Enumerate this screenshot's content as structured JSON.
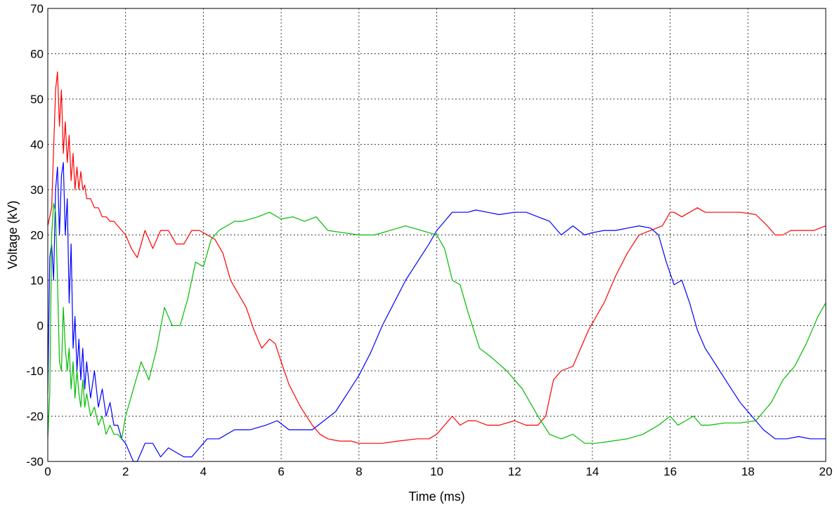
{
  "chart_data": {
    "type": "line",
    "title": "",
    "xlabel": "Time (ms)",
    "ylabel": "Voltage (kV)",
    "xlim": [
      0,
      20
    ],
    "ylim": [
      -30,
      70
    ],
    "xticks": [
      0,
      2,
      4,
      6,
      8,
      10,
      12,
      14,
      16,
      18,
      20
    ],
    "yticks": [
      -30,
      -20,
      -10,
      0,
      10,
      20,
      30,
      40,
      50,
      60,
      70
    ],
    "grid": true,
    "legend": "none",
    "series": [
      {
        "color": "#ff0000",
        "x": [
          0,
          0.1,
          0.2,
          0.25,
          0.3,
          0.35,
          0.4,
          0.45,
          0.5,
          0.55,
          0.6,
          0.65,
          0.7,
          0.75,
          0.8,
          0.85,
          0.9,
          0.95,
          1.0,
          1.1,
          1.2,
          1.3,
          1.4,
          1.5,
          1.6,
          1.7,
          1.8,
          1.9,
          2.0,
          2.15,
          2.3,
          2.5,
          2.7,
          2.9,
          3.1,
          3.3,
          3.5,
          3.7,
          3.9,
          4.1,
          4.3,
          4.5,
          4.7,
          4.9,
          5.1,
          5.3,
          5.5,
          5.7,
          5.85,
          6.0,
          6.2,
          6.5,
          6.8,
          7.0,
          7.2,
          7.5,
          7.8,
          8.0,
          8.3,
          8.6,
          9.0,
          9.5,
          9.8,
          10.0,
          10.2,
          10.4,
          10.6,
          10.8,
          11.0,
          11.3,
          11.6,
          12.0,
          12.3,
          12.6,
          12.8,
          13.0,
          13.2,
          13.5,
          13.7,
          13.9,
          14.1,
          14.3,
          14.6,
          14.9,
          15.2,
          15.5,
          15.8,
          16.0,
          16.1,
          16.3,
          16.5,
          16.7,
          16.9,
          17.1,
          17.4,
          17.8,
          18.2,
          18.5,
          18.7,
          18.9,
          19.1,
          19.3,
          19.5,
          19.7,
          20.0
        ],
        "y": [
          22,
          26,
          52,
          56,
          44,
          52,
          38,
          45,
          36,
          42,
          32,
          38,
          30,
          35,
          30,
          34,
          30,
          31,
          28,
          28,
          26,
          26,
          24,
          24,
          23,
          23,
          22,
          21,
          20,
          17,
          15,
          21,
          17,
          21,
          21,
          18,
          18,
          21,
          21,
          20,
          19,
          16,
          10,
          7,
          4,
          -1,
          -5,
          -3,
          -4,
          -8,
          -13,
          -18,
          -22,
          -24,
          -25,
          -25.5,
          -25.5,
          -26,
          -26,
          -26,
          -25.5,
          -25,
          -25,
          -24,
          -22,
          -20,
          -22,
          -21,
          -21,
          -22,
          -22,
          -21,
          -22,
          -22,
          -20,
          -12,
          -10,
          -9,
          -5,
          -1,
          2,
          5,
          11,
          16,
          20,
          21,
          22,
          25,
          25,
          24,
          25,
          26,
          25,
          25,
          25,
          25,
          24.5,
          22,
          20,
          20,
          21,
          21,
          21,
          21,
          22
        ]
      },
      {
        "color": "#0000ff",
        "x": [
          0,
          0.05,
          0.1,
          0.15,
          0.2,
          0.25,
          0.3,
          0.35,
          0.4,
          0.45,
          0.5,
          0.55,
          0.6,
          0.65,
          0.7,
          0.75,
          0.8,
          0.85,
          0.9,
          0.95,
          1.0,
          1.1,
          1.2,
          1.3,
          1.4,
          1.5,
          1.6,
          1.7,
          1.8,
          1.9,
          2.0,
          2.1,
          2.2,
          2.3,
          2.5,
          2.7,
          2.9,
          3.1,
          3.3,
          3.5,
          3.7,
          3.9,
          4.1,
          4.4,
          4.8,
          5.2,
          5.6,
          5.9,
          6.2,
          6.5,
          6.8,
          7.1,
          7.4,
          7.7,
          8.0,
          8.3,
          8.6,
          8.9,
          9.2,
          9.5,
          9.8,
          10.0,
          10.2,
          10.4,
          10.6,
          10.8,
          11.0,
          11.3,
          11.6,
          12.0,
          12.3,
          12.6,
          12.9,
          13.2,
          13.5,
          13.8,
          14.0,
          14.3,
          14.6,
          14.9,
          15.2,
          15.5,
          15.7,
          15.9,
          16.1,
          16.3,
          16.5,
          16.7,
          16.9,
          17.2,
          17.5,
          17.8,
          18.1,
          18.4,
          18.7,
          19.0,
          19.3,
          19.6,
          20.0
        ],
        "y": [
          -15,
          15,
          18,
          10,
          30,
          35,
          20,
          33,
          36,
          20,
          28,
          5,
          18,
          -5,
          2,
          -10,
          -3,
          -12,
          -5,
          -14,
          -8,
          -16,
          -10,
          -18,
          -14,
          -20,
          -17,
          -22,
          -22,
          -25,
          -26,
          -28,
          -30,
          -30,
          -26,
          -26,
          -29,
          -27,
          -28,
          -29,
          -29,
          -27,
          -25,
          -25,
          -23,
          -23,
          -22,
          -21,
          -23,
          -23,
          -23,
          -21,
          -19,
          -15,
          -11,
          -6,
          0,
          5,
          10,
          14,
          18,
          21,
          23,
          25,
          25,
          25,
          25.5,
          25,
          24.5,
          25,
          25,
          24,
          23,
          20,
          22,
          20,
          20.5,
          21,
          21,
          21.5,
          22,
          21.5,
          20,
          14,
          9,
          10,
          5,
          -1,
          -5,
          -9,
          -13,
          -17,
          -20,
          -23,
          -25,
          -25,
          -24.5,
          -25,
          -25
        ]
      },
      {
        "color": "#00bb00",
        "x": [
          0,
          0.05,
          0.1,
          0.15,
          0.2,
          0.25,
          0.3,
          0.35,
          0.4,
          0.45,
          0.5,
          0.55,
          0.6,
          0.65,
          0.7,
          0.75,
          0.8,
          0.85,
          0.9,
          0.95,
          1.0,
          1.1,
          1.2,
          1.3,
          1.4,
          1.5,
          1.6,
          1.7,
          1.8,
          1.9,
          2.0,
          2.2,
          2.4,
          2.6,
          2.8,
          3.0,
          3.2,
          3.4,
          3.6,
          3.8,
          4.0,
          4.2,
          4.4,
          4.6,
          4.8,
          5.0,
          5.2,
          5.4,
          5.7,
          6.0,
          6.3,
          6.6,
          6.9,
          7.2,
          7.6,
          8.0,
          8.4,
          8.8,
          9.2,
          9.6,
          10.0,
          10.2,
          10.4,
          10.6,
          10.8,
          11.1,
          11.4,
          11.8,
          12.2,
          12.6,
          12.9,
          13.2,
          13.5,
          13.8,
          14.1,
          14.5,
          14.9,
          15.3,
          15.7,
          16.0,
          16.2,
          16.4,
          16.6,
          16.8,
          17.0,
          17.4,
          17.8,
          18.2,
          18.6,
          18.9,
          19.2,
          19.5,
          19.8,
          20.0
        ],
        "y": [
          -25,
          -15,
          20,
          27,
          25,
          10,
          -8,
          -10,
          4,
          -5,
          -10,
          -5,
          -14,
          -8,
          -16,
          -10,
          -15,
          -18,
          -12,
          -18,
          -15,
          -20,
          -18,
          -22,
          -20,
          -24,
          -22,
          -24,
          -24,
          -25,
          -20,
          -14,
          -8,
          -12,
          -5,
          4,
          0,
          0,
          6,
          14,
          13,
          19,
          21,
          22,
          23,
          23,
          23.5,
          24,
          25,
          23.5,
          24,
          23,
          24,
          21,
          20.5,
          20,
          20,
          21,
          22,
          21,
          20,
          17,
          10,
          9,
          3,
          -5,
          -7,
          -10,
          -14,
          -20,
          -24,
          -25,
          -24,
          -26,
          -26,
          -25.5,
          -25,
          -24,
          -22,
          -20,
          -22,
          -21,
          -20,
          -22,
          -22,
          -21.5,
          -21.5,
          -21,
          -17,
          -12,
          -9,
          -4,
          2,
          5
        ]
      }
    ]
  }
}
